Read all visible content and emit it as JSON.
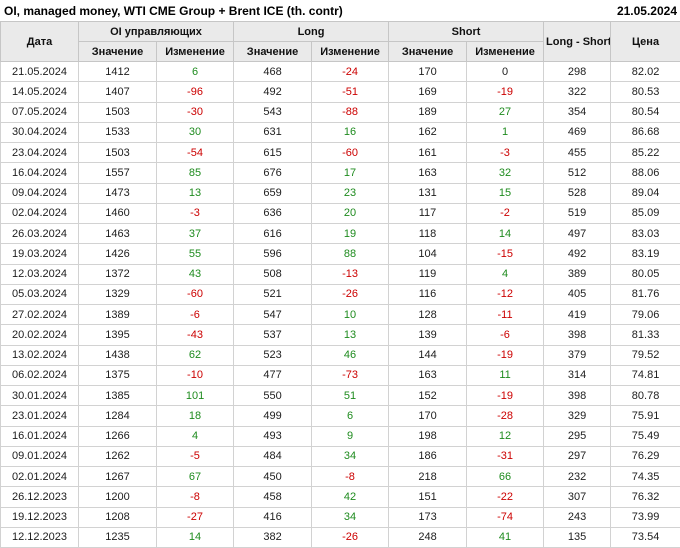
{
  "title": "OI, managed money, WTI CME Group + Brent ICE (th. contr)",
  "report_date": "21.05.2024",
  "colors": {
    "positive_change": "#1e8b1e",
    "negative_change": "#cc0000",
    "header_background": "#eaeaea",
    "grid_border": "#d2d2d2"
  },
  "table": {
    "header": {
      "date": "Дата",
      "oi_group": "OI управляющих",
      "long_group": "Long",
      "short_group": "Short",
      "value": "Значение",
      "change": "Изменение",
      "long_short": "Long - Short",
      "price": "Цена"
    },
    "col_names": [
      "date",
      "oi-value",
      "oi-change",
      "long-value",
      "long-change",
      "short-value",
      "short-change",
      "long-short",
      "price"
    ],
    "change_col_indexes": [
      2,
      4,
      6
    ],
    "rows": [
      [
        "21.05.2024",
        "1412",
        "6",
        "468",
        "-24",
        "170",
        "0",
        "298",
        "82.02"
      ],
      [
        "14.05.2024",
        "1407",
        "-96",
        "492",
        "-51",
        "169",
        "-19",
        "322",
        "80.53"
      ],
      [
        "07.05.2024",
        "1503",
        "-30",
        "543",
        "-88",
        "189",
        "27",
        "354",
        "80.54"
      ],
      [
        "30.04.2024",
        "1533",
        "30",
        "631",
        "16",
        "162",
        "1",
        "469",
        "86.68"
      ],
      [
        "23.04.2024",
        "1503",
        "-54",
        "615",
        "-60",
        "161",
        "-3",
        "455",
        "85.22"
      ],
      [
        "16.04.2024",
        "1557",
        "85",
        "676",
        "17",
        "163",
        "32",
        "512",
        "88.06"
      ],
      [
        "09.04.2024",
        "1473",
        "13",
        "659",
        "23",
        "131",
        "15",
        "528",
        "89.04"
      ],
      [
        "02.04.2024",
        "1460",
        "-3",
        "636",
        "20",
        "117",
        "-2",
        "519",
        "85.09"
      ],
      [
        "26.03.2024",
        "1463",
        "37",
        "616",
        "19",
        "118",
        "14",
        "497",
        "83.03"
      ],
      [
        "19.03.2024",
        "1426",
        "55",
        "596",
        "88",
        "104",
        "-15",
        "492",
        "83.19"
      ],
      [
        "12.03.2024",
        "1372",
        "43",
        "508",
        "-13",
        "119",
        "4",
        "389",
        "80.05"
      ],
      [
        "05.03.2024",
        "1329",
        "-60",
        "521",
        "-26",
        "116",
        "-12",
        "405",
        "81.76"
      ],
      [
        "27.02.2024",
        "1389",
        "-6",
        "547",
        "10",
        "128",
        "-11",
        "419",
        "79.06"
      ],
      [
        "20.02.2024",
        "1395",
        "-43",
        "537",
        "13",
        "139",
        "-6",
        "398",
        "81.33"
      ],
      [
        "13.02.2024",
        "1438",
        "62",
        "523",
        "46",
        "144",
        "-19",
        "379",
        "79.52"
      ],
      [
        "06.02.2024",
        "1375",
        "-10",
        "477",
        "-73",
        "163",
        "11",
        "314",
        "74.81"
      ],
      [
        "30.01.2024",
        "1385",
        "101",
        "550",
        "51",
        "152",
        "-19",
        "398",
        "80.78"
      ],
      [
        "23.01.2024",
        "1284",
        "18",
        "499",
        "6",
        "170",
        "-28",
        "329",
        "75.91"
      ],
      [
        "16.01.2024",
        "1266",
        "4",
        "493",
        "9",
        "198",
        "12",
        "295",
        "75.49"
      ],
      [
        "09.01.2024",
        "1262",
        "-5",
        "484",
        "34",
        "186",
        "-31",
        "297",
        "76.29"
      ],
      [
        "02.01.2024",
        "1267",
        "67",
        "450",
        "-8",
        "218",
        "66",
        "232",
        "74.35"
      ],
      [
        "26.12.2023",
        "1200",
        "-8",
        "458",
        "42",
        "151",
        "-22",
        "307",
        "76.32"
      ],
      [
        "19.12.2023",
        "1208",
        "-27",
        "416",
        "34",
        "173",
        "-74",
        "243",
        "73.99"
      ],
      [
        "12.12.2023",
        "1235",
        "14",
        "382",
        "-26",
        "248",
        "41",
        "135",
        "73.54"
      ]
    ]
  },
  "chart_data": {
    "type": "table",
    "title": "OI, managed money, WTI CME Group + Brent ICE (th. contr)",
    "as_of_date": "21.05.2024",
    "columns": [
      "Дата",
      "OI управляющих Значение",
      "OI управляющих Изменение",
      "Long Значение",
      "Long Изменение",
      "Short Значение",
      "Short Изменение",
      "Long - Short",
      "Цена"
    ],
    "rows": [
      [
        "21.05.2024",
        1412,
        6,
        468,
        -24,
        170,
        0,
        298,
        82.02
      ],
      [
        "14.05.2024",
        1407,
        -96,
        492,
        -51,
        169,
        -19,
        322,
        80.53
      ],
      [
        "07.05.2024",
        1503,
        -30,
        543,
        -88,
        189,
        27,
        354,
        80.54
      ],
      [
        "30.04.2024",
        1533,
        30,
        631,
        16,
        162,
        1,
        469,
        86.68
      ],
      [
        "23.04.2024",
        1503,
        -54,
        615,
        -60,
        161,
        -3,
        455,
        85.22
      ],
      [
        "16.04.2024",
        1557,
        85,
        676,
        17,
        163,
        32,
        512,
        88.06
      ],
      [
        "09.04.2024",
        1473,
        13,
        659,
        23,
        131,
        15,
        528,
        89.04
      ],
      [
        "02.04.2024",
        1460,
        -3,
        636,
        20,
        117,
        -2,
        519,
        85.09
      ],
      [
        "26.03.2024",
        1463,
        37,
        616,
        19,
        118,
        14,
        497,
        83.03
      ],
      [
        "19.03.2024",
        1426,
        55,
        596,
        88,
        104,
        -15,
        492,
        83.19
      ],
      [
        "12.03.2024",
        1372,
        43,
        508,
        -13,
        119,
        4,
        389,
        80.05
      ],
      [
        "05.03.2024",
        1329,
        -60,
        521,
        -26,
        116,
        -12,
        405,
        81.76
      ],
      [
        "27.02.2024",
        1389,
        -6,
        547,
        10,
        128,
        -11,
        419,
        79.06
      ],
      [
        "20.02.2024",
        1395,
        -43,
        537,
        13,
        139,
        -6,
        398,
        81.33
      ],
      [
        "13.02.2024",
        1438,
        62,
        523,
        46,
        144,
        -19,
        379,
        79.52
      ],
      [
        "06.02.2024",
        1375,
        -10,
        477,
        -73,
        163,
        11,
        314,
        74.81
      ],
      [
        "30.01.2024",
        1385,
        101,
        550,
        51,
        152,
        -19,
        398,
        80.78
      ],
      [
        "23.01.2024",
        1284,
        18,
        499,
        6,
        170,
        -28,
        329,
        75.91
      ],
      [
        "16.01.2024",
        1266,
        4,
        493,
        9,
        198,
        12,
        295,
        75.49
      ],
      [
        "09.01.2024",
        1262,
        -5,
        484,
        34,
        186,
        -31,
        297,
        76.29
      ],
      [
        "02.01.2024",
        1267,
        67,
        450,
        -8,
        218,
        66,
        232,
        74.35
      ],
      [
        "26.12.2023",
        1200,
        -8,
        458,
        42,
        151,
        -22,
        307,
        76.32
      ],
      [
        "19.12.2023",
        1208,
        -27,
        416,
        34,
        173,
        -74,
        243,
        73.99
      ],
      [
        "12.12.2023",
        1235,
        14,
        382,
        -26,
        248,
        41,
        135,
        73.54
      ]
    ]
  }
}
